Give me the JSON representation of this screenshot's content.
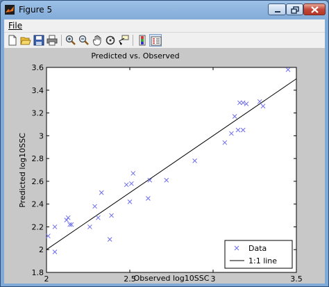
{
  "window": {
    "title": "Figure 5"
  },
  "menu": {
    "file_label": "File"
  },
  "toolbar": {
    "icons": [
      "new-figure-icon",
      "open-file-icon",
      "save-icon",
      "print-icon",
      "zoom-in-icon",
      "zoom-out-icon",
      "pan-icon",
      "rotate-3d-icon",
      "data-cursor-icon",
      "colorbar-icon",
      "legend-icon"
    ]
  },
  "chart_data": {
    "type": "scatter",
    "title": "Predicted vs. Observed",
    "xlabel": "Observed log10SSC",
    "ylabel": "Predicted log10SSC",
    "xlim": [
      2,
      3.5
    ],
    "ylim": [
      1.8,
      3.6
    ],
    "xticks": [
      "2",
      "2.5",
      "3",
      "3.5"
    ],
    "yticks": [
      "1.8",
      "2",
      "2.2",
      "2.4",
      "2.6",
      "2.8",
      "3",
      "3.2",
      "3.4",
      "3.6"
    ],
    "grid": false,
    "legend_position": "bottom-right",
    "series": [
      {
        "name": "Data",
        "marker": "x",
        "color": "#6b6bf0",
        "points": [
          [
            2.01,
            2.12
          ],
          [
            2.05,
            2.2
          ],
          [
            2.05,
            1.98
          ],
          [
            2.12,
            2.26
          ],
          [
            2.13,
            2.28
          ],
          [
            2.14,
            2.22
          ],
          [
            2.15,
            2.22
          ],
          [
            2.26,
            2.2
          ],
          [
            2.29,
            2.38
          ],
          [
            2.31,
            2.28
          ],
          [
            2.33,
            2.5
          ],
          [
            2.38,
            2.09
          ],
          [
            2.39,
            2.3
          ],
          [
            2.48,
            2.57
          ],
          [
            2.5,
            2.42
          ],
          [
            2.51,
            2.58
          ],
          [
            2.52,
            2.67
          ],
          [
            2.61,
            2.45
          ],
          [
            2.62,
            2.61
          ],
          [
            2.72,
            2.61
          ],
          [
            2.89,
            2.78
          ],
          [
            3.07,
            2.94
          ],
          [
            3.11,
            3.02
          ],
          [
            3.13,
            3.17
          ],
          [
            3.15,
            3.05
          ],
          [
            3.16,
            3.29
          ],
          [
            3.18,
            3.05
          ],
          [
            3.18,
            3.29
          ],
          [
            3.2,
            3.28
          ],
          [
            3.28,
            3.3
          ],
          [
            3.3,
            3.26
          ],
          [
            3.45,
            3.58
          ]
        ]
      },
      {
        "name": "1:1 line",
        "kind": "line",
        "color": "#000000",
        "x": [
          2.0,
          3.5
        ],
        "y": [
          2.0,
          3.5
        ]
      }
    ]
  },
  "colors": {
    "titlebar": "#7fa9d6",
    "axes_bg": "#ffffff",
    "figure_bg": "#c8c8c8",
    "marker": "#6b6bf0"
  }
}
